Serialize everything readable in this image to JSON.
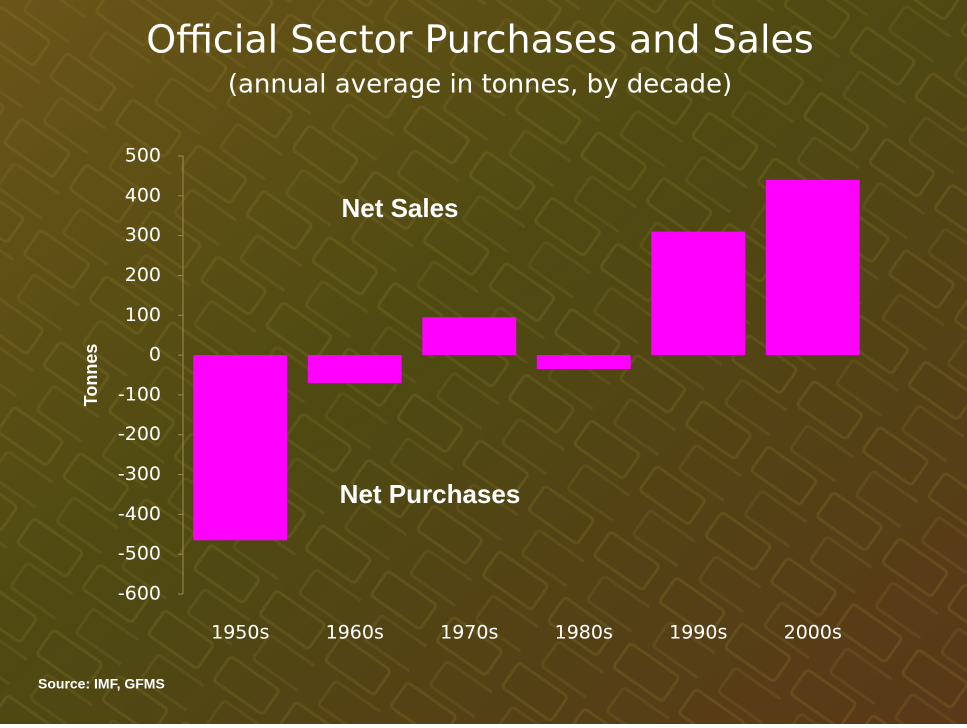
{
  "chart_data": {
    "type": "bar",
    "title": "Official Sector Purchases and Sales",
    "subtitle": "(annual average in tonnes, by decade)",
    "y_label": "Tonnes",
    "categories": [
      "1950s",
      "1960s",
      "1970s",
      "1980s",
      "1990s",
      "2000s"
    ],
    "values": [
      -465,
      -70,
      95,
      -35,
      310,
      440
    ],
    "color": "#ff00ff",
    "ylim": [
      -600,
      500
    ],
    "yticks": [
      -600,
      -500,
      -400,
      -300,
      -200,
      -100,
      0,
      100,
      200,
      300,
      400,
      500
    ],
    "annotations": [
      "Net Sales",
      "Net Purchases"
    ],
    "source": "Source: IMF, GFMS"
  }
}
